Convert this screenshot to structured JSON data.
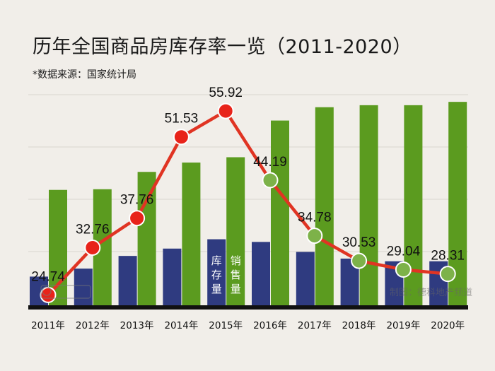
{
  "title": "历年全国商品房库存率一览（2011-2020）",
  "source": "*数据来源：国家统计局",
  "watermark": "制图：德科地产频道",
  "legend": {
    "inventory": "库存量",
    "sales": "销售量"
  },
  "colors": {
    "background": "#f1eee9",
    "inventory_bar": "#2f3b80",
    "sales_bar": "#5b9b1f",
    "line": "#e03423",
    "marker_high": "#e8231a",
    "marker_low": "#7db249"
  },
  "chart_data": {
    "type": "bar+line",
    "title": "历年全国商品房库存率一览（2011-2020）",
    "categories": [
      "2011年",
      "2012年",
      "2013年",
      "2014年",
      "2015年",
      "2016年",
      "2017年",
      "2018年",
      "2019年",
      "2020年"
    ],
    "series": [
      {
        "name": "库存量",
        "type": "bar",
        "values": [
          4.3,
          5.5,
          7.4,
          8.5,
          9.9,
          9.5,
          8.0,
          7.0,
          6.6,
          6.6
        ],
        "note": "relative heights, unlabeled"
      },
      {
        "name": "销售量",
        "type": "bar",
        "values": [
          17.3,
          17.4,
          20.0,
          21.4,
          22.2,
          27.7,
          29.7,
          30.0,
          30.0,
          30.5
        ],
        "note": "relative heights, unlabeled"
      },
      {
        "name": "库存率",
        "type": "line",
        "values": [
          24.74,
          32.76,
          37.76,
          51.53,
          55.92,
          44.19,
          34.78,
          30.53,
          29.04,
          28.31
        ],
        "labels": [
          "24.74",
          "32.76",
          "37.76",
          "51.53",
          "55.92",
          "44.19",
          "34.78",
          "30.53",
          "29.04",
          "28.31"
        ]
      }
    ],
    "grid": true
  }
}
